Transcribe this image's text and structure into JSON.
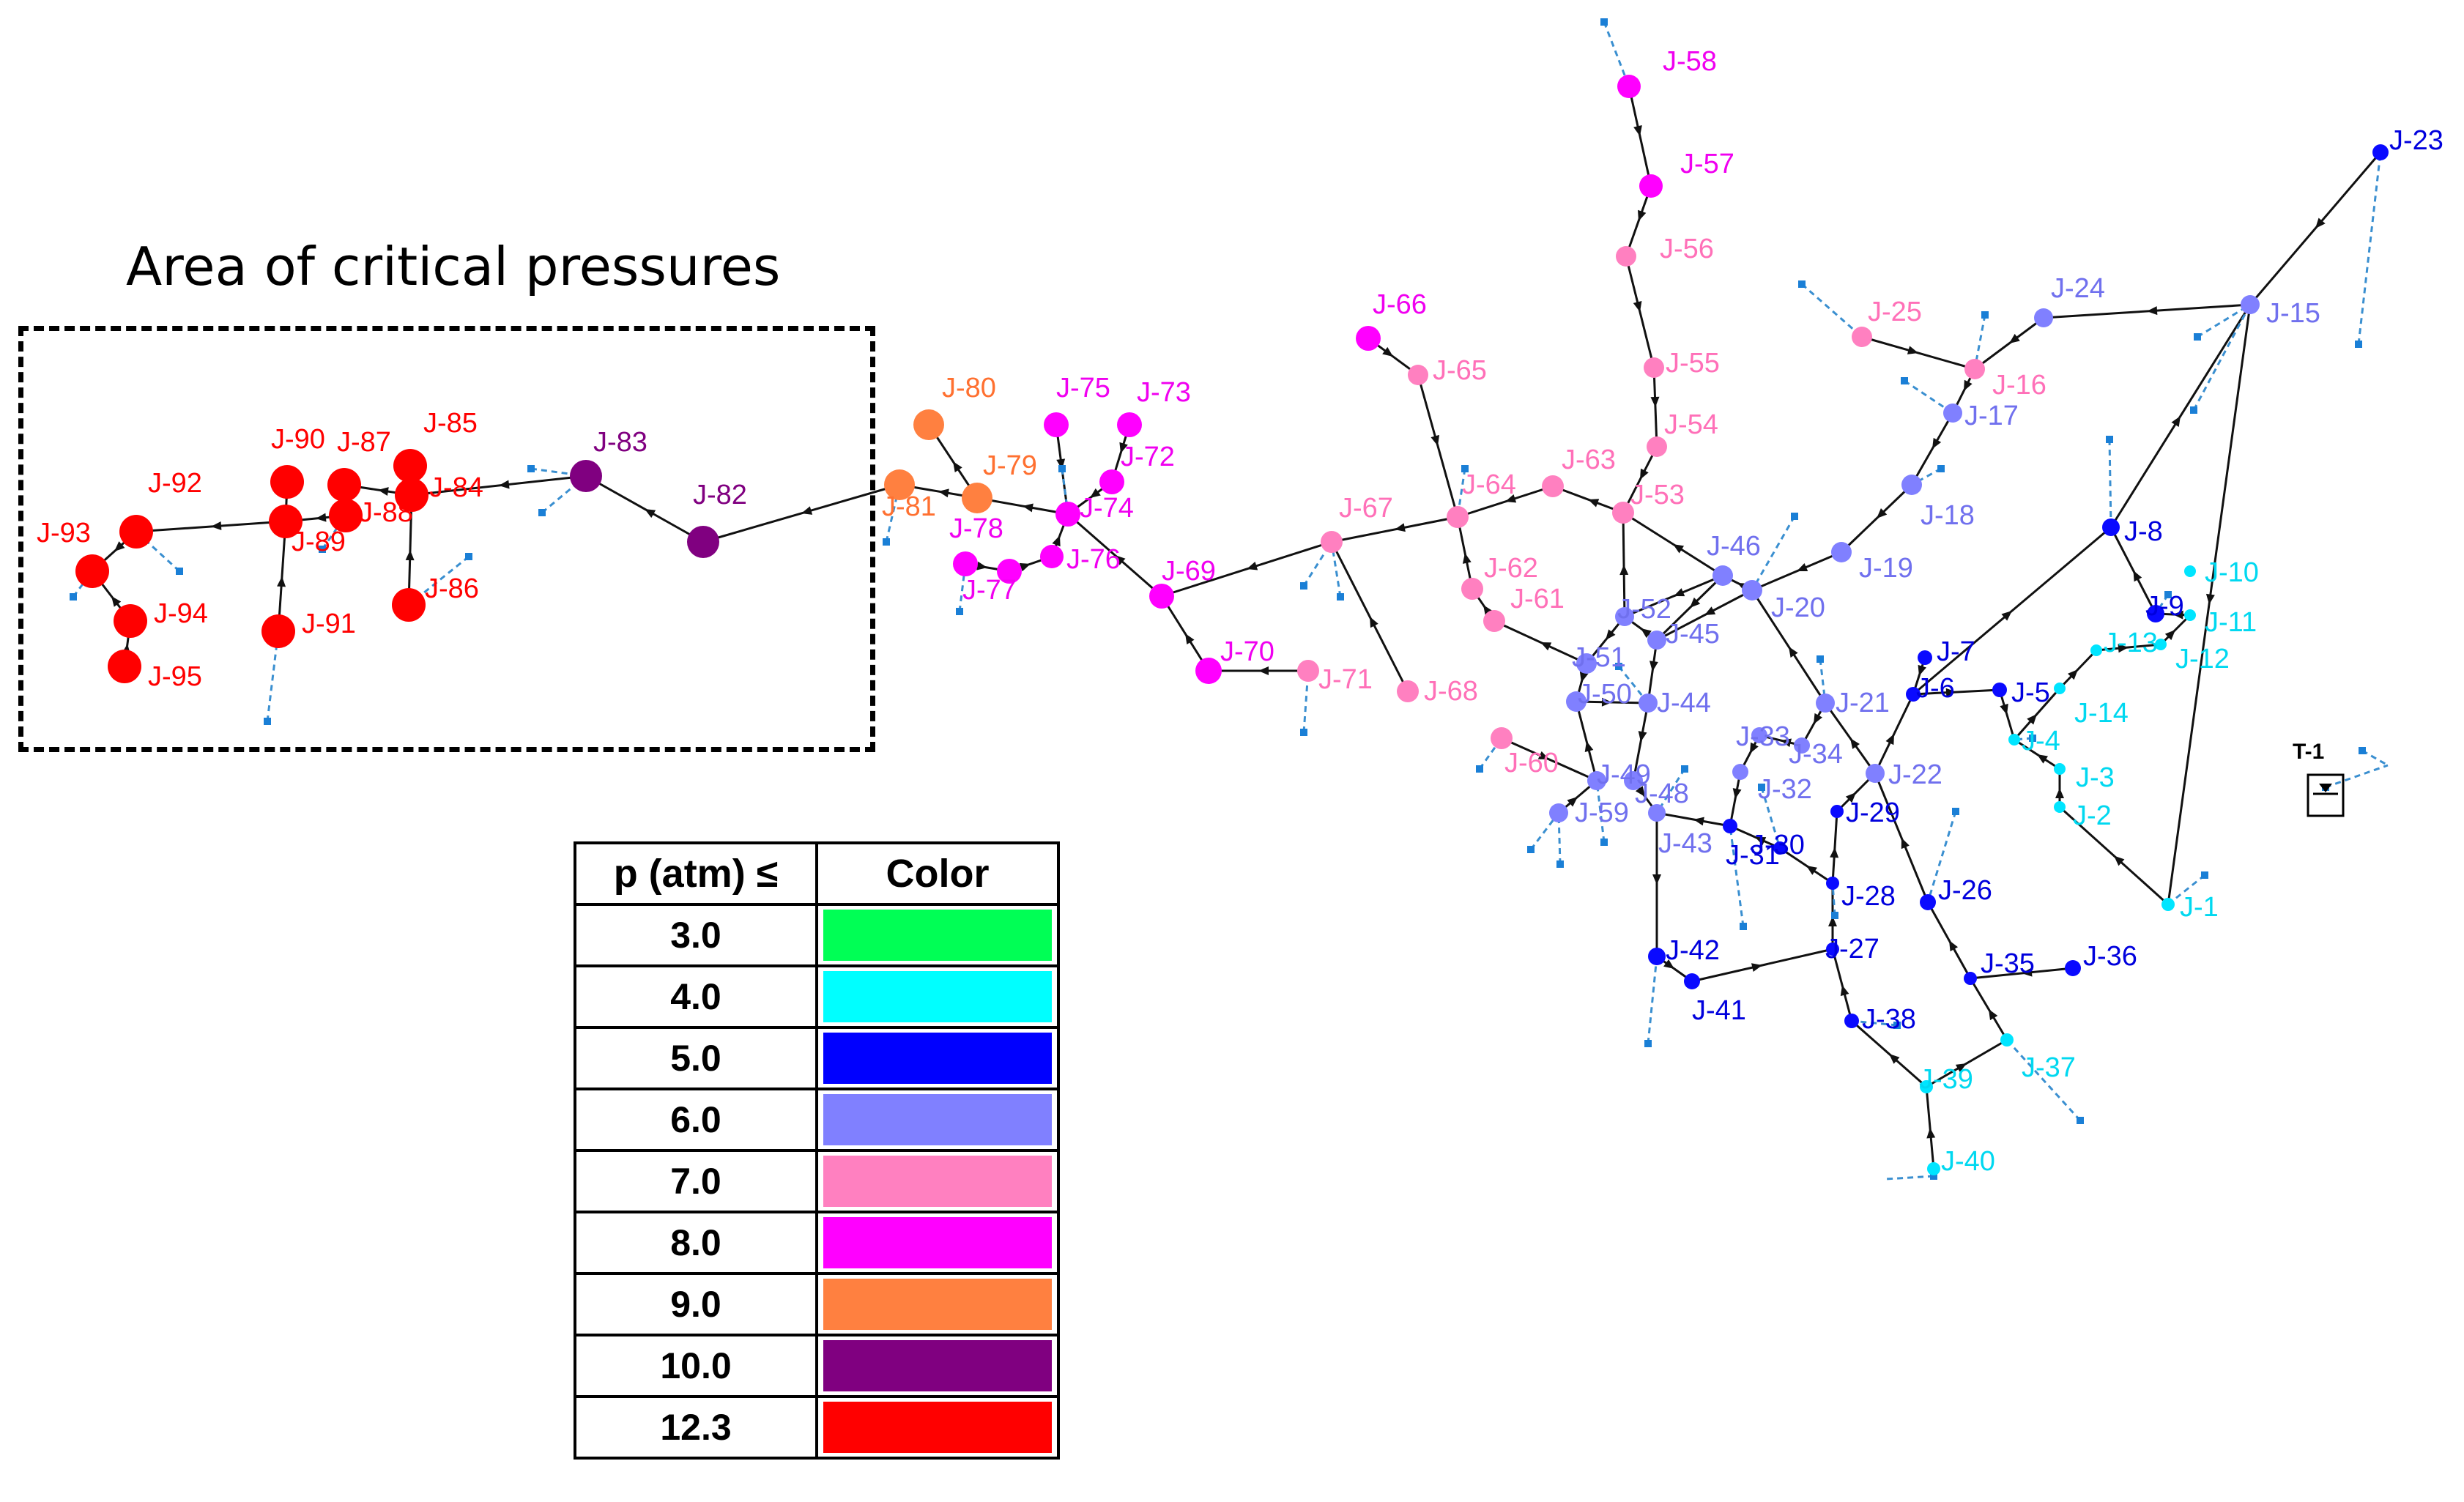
{
  "critical_area": {
    "title": "Area of critical pressures"
  },
  "tank_label": "T-1",
  "legend": {
    "header_value": "p (atm) ≤",
    "header_color": "Color",
    "rows": [
      {
        "value": "3.0",
        "color": "#00ff55"
      },
      {
        "value": "4.0",
        "color": "#00ffff"
      },
      {
        "value": "5.0",
        "color": "#0000ff"
      },
      {
        "value": "6.0",
        "color": "#8080ff"
      },
      {
        "value": "7.0",
        "color": "#ff80c0"
      },
      {
        "value": "8.0",
        "color": "#ff00ff"
      },
      {
        "value": "9.0",
        "color": "#ff8040"
      },
      {
        "value": "10.0",
        "color": "#800080"
      },
      {
        "value": "12.3",
        "color": "#ff0000"
      }
    ]
  },
  "junctions": [
    {
      "id": "J-1",
      "color": "cyan"
    },
    {
      "id": "J-2",
      "color": "cyan"
    },
    {
      "id": "J-3",
      "color": "cyan"
    },
    {
      "id": "J-4",
      "color": "cyan"
    },
    {
      "id": "J-5",
      "color": "blue"
    },
    {
      "id": "J-6",
      "color": "blue"
    },
    {
      "id": "J-7",
      "color": "blue"
    },
    {
      "id": "J-8",
      "color": "blue"
    },
    {
      "id": "J-9",
      "color": "blue"
    },
    {
      "id": "J-10",
      "color": "cyan"
    },
    {
      "id": "J-11",
      "color": "cyan"
    },
    {
      "id": "J-12",
      "color": "cyan"
    },
    {
      "id": "J-13",
      "color": "cyan"
    },
    {
      "id": "J-14",
      "color": "cyan"
    },
    {
      "id": "J-15",
      "color": "lightblue"
    },
    {
      "id": "J-16",
      "color": "pink"
    },
    {
      "id": "J-17",
      "color": "lightblue"
    },
    {
      "id": "J-18",
      "color": "lightblue"
    },
    {
      "id": "J-19",
      "color": "lightblue"
    },
    {
      "id": "J-20",
      "color": "lightblue"
    },
    {
      "id": "J-21",
      "color": "lightblue"
    },
    {
      "id": "J-22",
      "color": "lightblue"
    },
    {
      "id": "J-23",
      "color": "blue"
    },
    {
      "id": "J-24",
      "color": "lightblue"
    },
    {
      "id": "J-25",
      "color": "pink"
    },
    {
      "id": "J-26",
      "color": "blue"
    },
    {
      "id": "J-27",
      "color": "blue"
    },
    {
      "id": "J-28",
      "color": "blue"
    },
    {
      "id": "J-29",
      "color": "blue"
    },
    {
      "id": "J-30",
      "color": "blue"
    },
    {
      "id": "J-31",
      "color": "blue"
    },
    {
      "id": "J-32",
      "color": "lightblue"
    },
    {
      "id": "J-33",
      "color": "lightblue"
    },
    {
      "id": "J-34",
      "color": "lightblue"
    },
    {
      "id": "J-35",
      "color": "blue"
    },
    {
      "id": "J-36",
      "color": "blue"
    },
    {
      "id": "J-37",
      "color": "cyan"
    },
    {
      "id": "J-38",
      "color": "blue"
    },
    {
      "id": "J-39",
      "color": "cyan"
    },
    {
      "id": "J-40",
      "color": "cyan"
    },
    {
      "id": "J-41",
      "color": "blue"
    },
    {
      "id": "J-42",
      "color": "blue"
    },
    {
      "id": "J-43",
      "color": "lightblue"
    },
    {
      "id": "J-44",
      "color": "lightblue"
    },
    {
      "id": "J-45",
      "color": "lightblue"
    },
    {
      "id": "J-46",
      "color": "lightblue"
    },
    {
      "id": "J-48",
      "color": "lightblue"
    },
    {
      "id": "J-49",
      "color": "lightblue"
    },
    {
      "id": "J-50",
      "color": "lightblue"
    },
    {
      "id": "J-51",
      "color": "lightblue"
    },
    {
      "id": "J-52",
      "color": "lightblue"
    },
    {
      "id": "J-53",
      "color": "pink"
    },
    {
      "id": "J-54",
      "color": "pink"
    },
    {
      "id": "J-55",
      "color": "pink"
    },
    {
      "id": "J-56",
      "color": "pink"
    },
    {
      "id": "J-57",
      "color": "magenta"
    },
    {
      "id": "J-58",
      "color": "magenta"
    },
    {
      "id": "J-59",
      "color": "lightblue"
    },
    {
      "id": "J-60",
      "color": "pink"
    },
    {
      "id": "J-61",
      "color": "pink"
    },
    {
      "id": "J-62",
      "color": "pink"
    },
    {
      "id": "J-63",
      "color": "pink"
    },
    {
      "id": "J-64",
      "color": "pink"
    },
    {
      "id": "J-65",
      "color": "pink"
    },
    {
      "id": "J-66",
      "color": "magenta"
    },
    {
      "id": "J-67",
      "color": "pink"
    },
    {
      "id": "J-68",
      "color": "pink"
    },
    {
      "id": "J-69",
      "color": "magenta"
    },
    {
      "id": "J-70",
      "color": "magenta"
    },
    {
      "id": "J-71",
      "color": "pink"
    },
    {
      "id": "J-72",
      "color": "magenta"
    },
    {
      "id": "J-73",
      "color": "magenta"
    },
    {
      "id": "J-74",
      "color": "magenta"
    },
    {
      "id": "J-75",
      "color": "magenta"
    },
    {
      "id": "J-76",
      "color": "magenta"
    },
    {
      "id": "J-77",
      "color": "magenta"
    },
    {
      "id": "J-78",
      "color": "magenta"
    },
    {
      "id": "J-79",
      "color": "orange"
    },
    {
      "id": "J-80",
      "color": "orange"
    },
    {
      "id": "J-81",
      "color": "orange"
    },
    {
      "id": "J-82",
      "color": "purple"
    },
    {
      "id": "J-83",
      "color": "purple"
    },
    {
      "id": "J-84",
      "color": "red"
    },
    {
      "id": "J-85",
      "color": "red"
    },
    {
      "id": "J-86",
      "color": "red"
    },
    {
      "id": "J-87",
      "color": "red"
    },
    {
      "id": "J-88",
      "color": "red"
    },
    {
      "id": "J-89",
      "color": "red"
    },
    {
      "id": "J-90",
      "color": "red"
    },
    {
      "id": "J-91",
      "color": "red"
    },
    {
      "id": "J-92",
      "color": "red"
    },
    {
      "id": "J-93",
      "color": "red"
    },
    {
      "id": "J-94",
      "color": "red"
    },
    {
      "id": "J-95",
      "color": "red"
    }
  ]
}
